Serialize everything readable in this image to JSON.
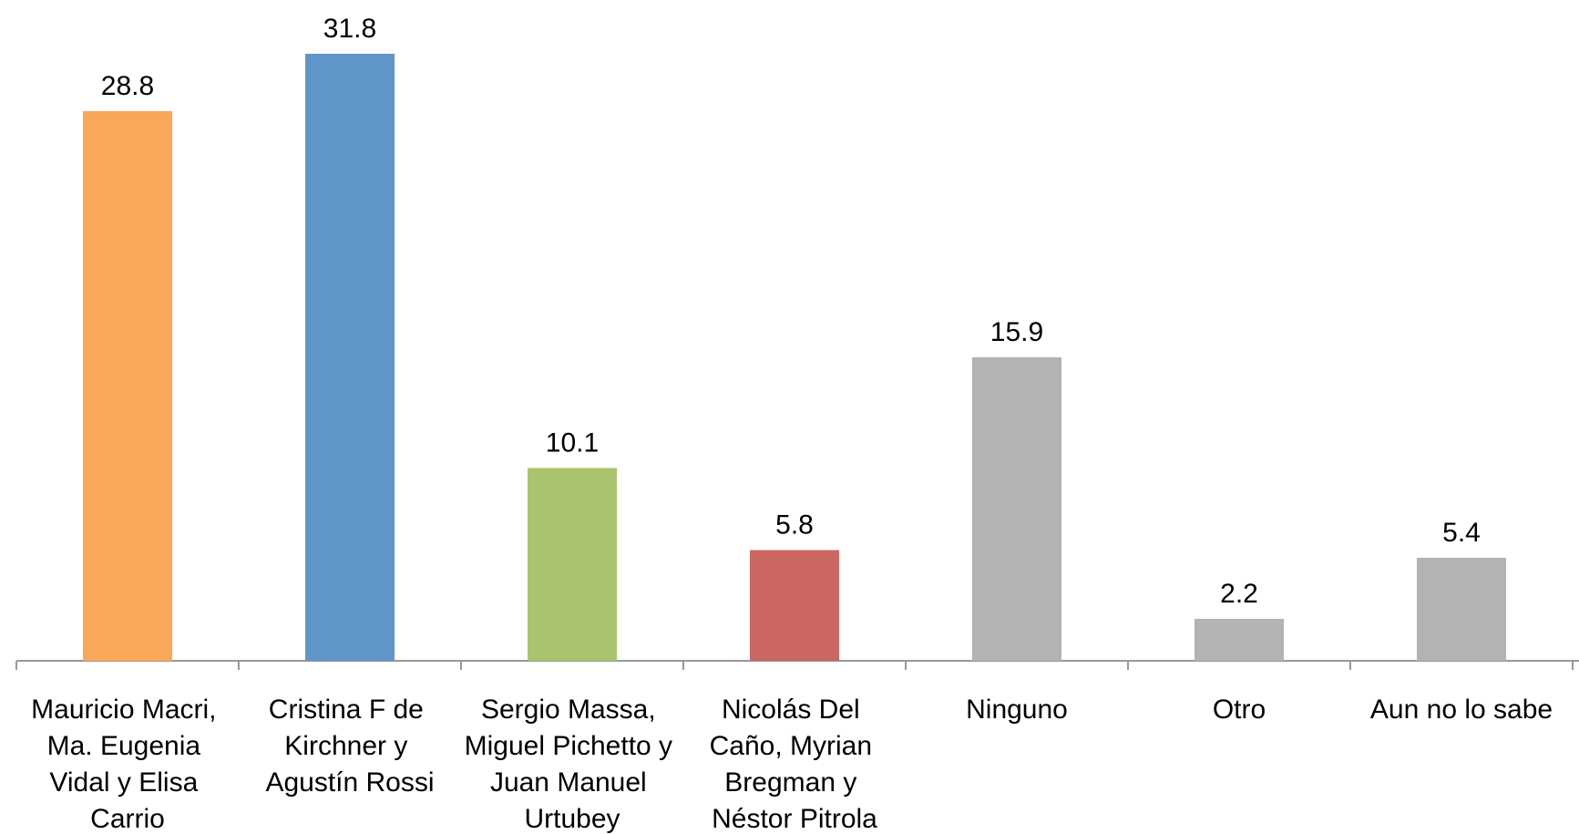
{
  "chart_data": {
    "type": "bar",
    "categories": [
      "Mauricio Macri, Ma. Eugenia Vidal y Elisa Carrio",
      "Cristina F de Kirchner y Agustín Rossi",
      "Sergio Massa, Miguel Pichetto y Juan Manuel Urtubey",
      "Nicolás Del Caño, Myrian Bregman y Néstor Pitrola",
      "Ninguno",
      "Otro",
      "Aun no lo sabe"
    ],
    "values": [
      28.8,
      31.8,
      10.1,
      5.8,
      15.9,
      2.2,
      5.4
    ],
    "colors": [
      "#f9a85a",
      "#6095c9",
      "#a9c46c",
      "#cc6660",
      "#b3b3b3",
      "#b3b3b3",
      "#b3b3b3"
    ],
    "grid": false
  }
}
